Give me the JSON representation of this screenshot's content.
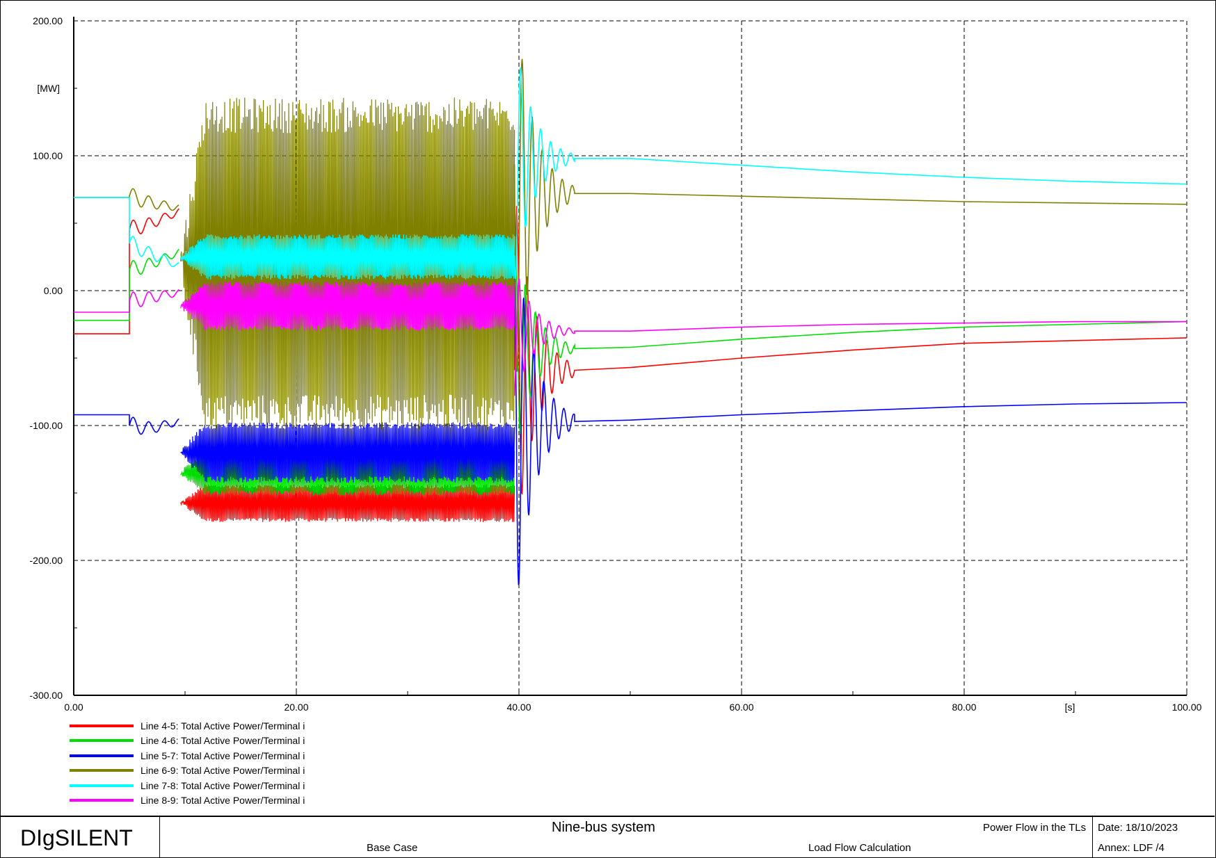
{
  "chart_data": {
    "type": "line",
    "ylabel": "[MW]",
    "xunit": "[s]",
    "xlim": [
      0,
      100
    ],
    "ylim": [
      -300,
      200
    ],
    "x_ticks": [
      "0.00",
      "20.00",
      "40.00",
      "60.00",
      "80.00",
      "100.00"
    ],
    "y_ticks": [
      "200.00",
      "100.00",
      "0.00",
      "-100.00",
      "-200.00",
      "-300.00"
    ],
    "grid": true,
    "legend_position": "bottom-left",
    "series": [
      {
        "name": "Line 4-5: Total Active Power/Terminal i",
        "color": "#ff0000",
        "pre_value": -32,
        "ramp_events": [
          [
            5,
            45
          ],
          [
            7,
            50
          ],
          [
            9,
            57
          ]
        ],
        "band_during": [
          -170,
          -145
        ],
        "spike_peak": 130,
        "spike_trough": -150,
        "settle_points": [
          [
            45,
            -59
          ],
          [
            50,
            -57
          ],
          [
            60,
            -50
          ],
          [
            70,
            -44
          ],
          [
            80,
            -39
          ],
          [
            90,
            -37
          ],
          [
            100,
            -35
          ]
        ]
      },
      {
        "name": "Line 4-6: Total Active Power/Terminal i",
        "color": "#00dd00",
        "pre_value": -22,
        "ramp_events": [
          [
            5,
            15
          ],
          [
            7,
            20
          ],
          [
            9,
            27
          ]
        ],
        "band_during": [
          -150,
          -120
        ],
        "spike_peak": 100,
        "spike_trough": -75,
        "settle_points": [
          [
            45,
            -43
          ],
          [
            50,
            -42
          ],
          [
            60,
            -36
          ],
          [
            70,
            -31
          ],
          [
            80,
            -27
          ],
          [
            90,
            -25
          ],
          [
            100,
            -23
          ]
        ]
      },
      {
        "name": "Line 5-7: Total Active Power/Terminal i",
        "color": "#0000ff",
        "pre_value": -92,
        "ramp_events": [
          [
            5,
            -100
          ],
          [
            7,
            -102
          ],
          [
            9,
            -98
          ]
        ],
        "band_during": [
          -140,
          -100
        ],
        "spike_peak": 120,
        "spike_trough": -190,
        "settle_points": [
          [
            45,
            -97
          ],
          [
            50,
            -96
          ],
          [
            60,
            -92
          ],
          [
            70,
            -89
          ],
          [
            80,
            -86
          ],
          [
            90,
            -84
          ],
          [
            100,
            -83
          ]
        ]
      },
      {
        "name": "Line 6-9: Total Active Power/Terminal i",
        "color": "#808000",
        "pre_value": 69,
        "ramp_events": [
          [
            5,
            70
          ],
          [
            7,
            65
          ],
          [
            9,
            62
          ]
        ],
        "band_during": [
          -90,
          130
        ],
        "spike_peak": 177,
        "spike_trough": -130,
        "settle_points": [
          [
            45,
            72
          ],
          [
            50,
            72
          ],
          [
            60,
            70
          ],
          [
            70,
            68
          ],
          [
            80,
            66
          ],
          [
            90,
            65
          ],
          [
            100,
            64
          ]
        ]
      },
      {
        "name": "Line 7-8: Total Active Power/Terminal i",
        "color": "#00ffff",
        "pre_value": 69,
        "ramp_events": [
          [
            5,
            35
          ],
          [
            7,
            27
          ],
          [
            9,
            20
          ]
        ],
        "band_during": [
          10,
          40
        ],
        "spike_peak": 140,
        "spike_trough": -50,
        "settle_points": [
          [
            45,
            98
          ],
          [
            50,
            98
          ],
          [
            60,
            93
          ],
          [
            70,
            88
          ],
          [
            80,
            84
          ],
          [
            90,
            81
          ],
          [
            100,
            79
          ]
        ]
      },
      {
        "name": "Line 8-9: Total Active Power/Terminal i",
        "color": "#ff00ff",
        "pre_value": -16,
        "ramp_events": [
          [
            5,
            -8
          ],
          [
            7,
            -5
          ],
          [
            9,
            -2
          ]
        ],
        "band_during": [
          -28,
          5
        ],
        "spike_peak": 40,
        "spike_trough": -60,
        "settle_points": [
          [
            45,
            -30
          ],
          [
            50,
            -30
          ],
          [
            60,
            -27
          ],
          [
            70,
            -25
          ],
          [
            80,
            -24
          ],
          [
            90,
            -23
          ],
          [
            100,
            -23
          ]
        ]
      }
    ]
  },
  "titleblock": {
    "brand": "DIgSILENT",
    "title": "Nine-bus system",
    "subtitle_left": "Base Case",
    "page_name": "Power Flow in the TLs",
    "study": "Load Flow Calculation",
    "date": "Date: 18/10/2023",
    "annex": "Annex: LDF /4"
  }
}
